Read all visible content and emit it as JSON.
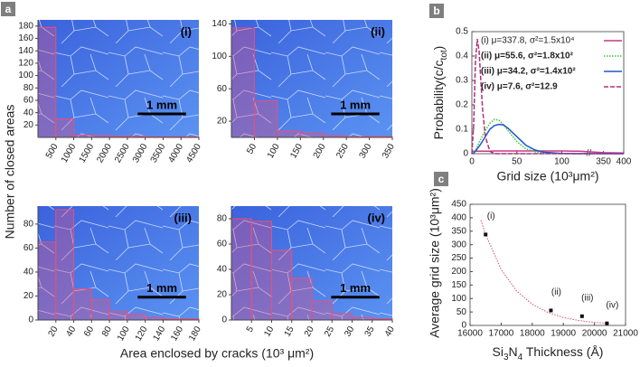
{
  "panel_labels": [
    "a",
    "b",
    "c"
  ],
  "shared_y_label": "Number of closed areas",
  "shared_x_label": "Area enclosed by cracks (10³ μm²)",
  "chart_data": [
    {
      "type": "histogram",
      "label": "(i)",
      "scale_bar": "1 mm",
      "bins": [
        0,
        500,
        1000,
        1500,
        2000,
        2500,
        3000,
        3500,
        4000,
        4500
      ],
      "values": [
        178,
        30,
        4,
        3,
        2,
        2,
        1,
        1,
        1
      ],
      "xlim": [
        0,
        4500
      ],
      "xticks": [
        500,
        1000,
        1500,
        2000,
        2500,
        3000,
        3500,
        4000,
        4500
      ],
      "ylim": [
        0,
        190
      ],
      "yticks": [
        20,
        40,
        60,
        80,
        100,
        120,
        140,
        160,
        180
      ],
      "color": "#e8507a"
    },
    {
      "type": "histogram",
      "label": "(ii)",
      "scale_bar": "1 mm",
      "bins": [
        0,
        50,
        100,
        150,
        200,
        250,
        300,
        350
      ],
      "values": [
        135,
        45,
        8,
        5,
        2,
        1,
        1
      ],
      "xlim": [
        0,
        350
      ],
      "xticks": [
        50,
        100,
        150,
        200,
        250,
        300,
        350
      ],
      "ylim": [
        0,
        145
      ],
      "yticks": [
        20,
        60,
        100,
        140
      ],
      "color": "#e8507a"
    },
    {
      "type": "histogram",
      "label": "(iii)",
      "scale_bar": "1 mm",
      "bins": [
        0,
        20,
        40,
        60,
        80,
        100,
        120,
        140,
        160,
        180
      ],
      "values": [
        65,
        92,
        26,
        17,
        7,
        5,
        2,
        1,
        1
      ],
      "xlim": [
        0,
        180
      ],
      "xticks": [
        20,
        40,
        60,
        80,
        100,
        120,
        140,
        160,
        180
      ],
      "ylim": [
        0,
        95
      ],
      "yticks": [
        0,
        20,
        40,
        60,
        80
      ],
      "color": "#e8507a"
    },
    {
      "type": "histogram",
      "label": "(iv)",
      "scale_bar": "1 mm",
      "bins": [
        0,
        5,
        10,
        15,
        20,
        25,
        30,
        35,
        40
      ],
      "values": [
        80,
        78,
        55,
        33,
        15,
        5,
        2,
        1
      ],
      "xlim": [
        0,
        40
      ],
      "xticks": [
        5,
        10,
        15,
        20,
        25,
        30,
        35,
        40
      ],
      "ylim": [
        0,
        90
      ],
      "yticks": [
        0,
        20,
        40,
        60,
        80
      ],
      "color": "#e8507a"
    },
    {
      "type": "line",
      "x_label": "Grid size (10³μm²)",
      "y_label": [
        "Probability(c/c",
        "tot",
        ")"
      ],
      "x": [
        0,
        2,
        4,
        6,
        8,
        10,
        12,
        15,
        20,
        25,
        30,
        35,
        40,
        50,
        60,
        70,
        80,
        100,
        120,
        350,
        400
      ],
      "xlim": [
        0,
        400
      ],
      "xbreak": [
        125,
        325
      ],
      "xticks": [
        0,
        50,
        100,
        350,
        400
      ],
      "ylim": [
        0,
        0.5
      ],
      "yticks": [
        0,
        0.1,
        0.2,
        0.3,
        0.4,
        0.5
      ],
      "series": [
        {
          "name": "(i)  μ=337.8,   σ²=1.5x10⁴",
          "color": "#c8378a",
          "dash": "solid",
          "values": [
            0.01,
            0.01,
            0.01,
            0.01,
            0.01,
            0.01,
            0.01,
            0.01,
            0.01,
            0.011,
            0.011,
            0.011,
            0.011,
            0.011,
            0.011,
            0.011,
            0.011,
            0.011,
            0.01,
            0.004,
            0.003
          ]
        },
        {
          "name": "(ii)  μ=55.6,   σ²=1.8x10²",
          "color": "#33cc33",
          "dash": "dotted",
          "values": [
            0,
            0.005,
            0.015,
            0.03,
            0.045,
            0.06,
            0.075,
            0.095,
            0.125,
            0.14,
            0.138,
            0.12,
            0.095,
            0.05,
            0.02,
            0.008,
            0.003,
            0,
            0,
            0,
            0
          ]
        },
        {
          "name": "(iii)  μ=34.2,   σ²=1.4x10²",
          "color": "#2255cc",
          "dash": "solid",
          "values": [
            0,
            0.003,
            0.01,
            0.02,
            0.03,
            0.04,
            0.052,
            0.07,
            0.1,
            0.115,
            0.12,
            0.118,
            0.105,
            0.07,
            0.035,
            0.015,
            0.006,
            0.001,
            0,
            0,
            0
          ]
        },
        {
          "name": "(iv)  μ=7.6,      σ²=12.9",
          "color": "#b0307a",
          "dash": "dashed",
          "values": [
            0,
            0.12,
            0.38,
            0.47,
            0.42,
            0.3,
            0.18,
            0.07,
            0.01,
            0,
            0,
            0,
            0,
            0,
            0,
            0,
            0,
            0,
            0,
            0,
            0
          ]
        }
      ]
    },
    {
      "type": "scatter",
      "x_label": [
        "Si",
        "3",
        "N",
        "4",
        " Thickness (Å)"
      ],
      "y_label": "Average grid size (10³μm²)",
      "x": [
        16500,
        18600,
        19600,
        20400
      ],
      "values": [
        337.8,
        55.6,
        34.2,
        7.6
      ],
      "point_labels": [
        "(i)",
        "(ii)",
        "(iii)",
        "(iv)"
      ],
      "color": "#111111",
      "fit": {
        "color": "#d0506a",
        "x": [
          16350,
          16500,
          17000,
          17500,
          18000,
          18500,
          19000,
          19500,
          20000,
          20500
        ],
        "values": [
          391,
          337.8,
          207.7,
          127.6,
          78.5,
          48.3,
          29.7,
          18.3,
          11.2,
          6.9
        ]
      },
      "xlim": [
        16000,
        21000
      ],
      "xticks": [
        16000,
        17000,
        18000,
        19000,
        20000,
        21000
      ],
      "ylim": [
        0,
        450
      ],
      "yticks": [
        0,
        50,
        100,
        150,
        200,
        250,
        300,
        350,
        400,
        450
      ]
    }
  ]
}
